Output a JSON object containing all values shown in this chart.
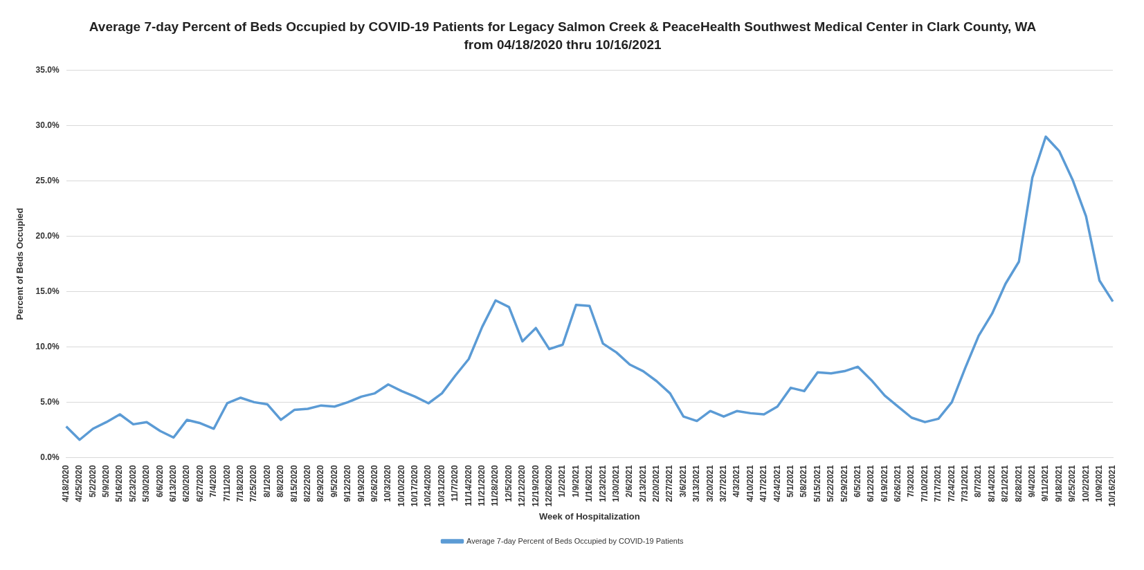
{
  "chart_data": {
    "type": "line",
    "title": "Average 7-day Percent of Beds Occupied by COVID-19 Patients for Legacy Salmon Creek & PeaceHealth Southwest Medical Center in Clark County, WA",
    "subtitle": "from 04/18/2020 thru 10/16/2021",
    "xlabel": "Week of Hospitalization",
    "ylabel": "Percent of Beds Occupied",
    "categories": [
      "4/18/2020",
      "4/25/2020",
      "5/2/2020",
      "5/9/2020",
      "5/16/2020",
      "5/23/2020",
      "5/30/2020",
      "6/6/2020",
      "6/13/2020",
      "6/20/2020",
      "6/27/2020",
      "7/4/2020",
      "7/11/2020",
      "7/18/2020",
      "7/25/2020",
      "8/1/2020",
      "8/8/2020",
      "8/15/2020",
      "8/22/2020",
      "8/29/2020",
      "9/5/2020",
      "9/12/2020",
      "9/19/2020",
      "9/26/2020",
      "10/3/2020",
      "10/10/2020",
      "10/17/2020",
      "10/24/2020",
      "10/31/2020",
      "11/7/2020",
      "11/14/2020",
      "11/21/2020",
      "11/28/2020",
      "12/5/2020",
      "12/12/2020",
      "12/19/2020",
      "12/26/2020",
      "1/2/2021",
      "1/9/2021",
      "1/16/2021",
      "1/23/2021",
      "1/30/2021",
      "2/6/2021",
      "2/13/2021",
      "2/20/2021",
      "2/27/2021",
      "3/6/2021",
      "3/13/2021",
      "3/20/2021",
      "3/27/2021",
      "4/3/2021",
      "4/10/2021",
      "4/17/2021",
      "4/24/2021",
      "5/1/2021",
      "5/8/2021",
      "5/15/2021",
      "5/22/2021",
      "5/29/2021",
      "6/5/2021",
      "6/12/2021",
      "6/19/2021",
      "6/26/2021",
      "7/3/2021",
      "7/10/2021",
      "7/17/2021",
      "7/24/2021",
      "7/31/2021",
      "8/7/2021",
      "8/14/2021",
      "8/21/2021",
      "8/28/2021",
      "9/4/2021",
      "9/11/2021",
      "9/18/2021",
      "9/25/2021",
      "10/2/2021",
      "10/9/2021",
      "10/16/2021"
    ],
    "series": [
      {
        "name": "Average 7-day Percent of Beds Occupied by COVID-19 Patients",
        "color": "#5b9bd5",
        "values": [
          2.8,
          1.6,
          2.6,
          3.2,
          3.9,
          3.0,
          3.2,
          2.4,
          1.8,
          3.4,
          3.1,
          2.6,
          4.9,
          5.4,
          5.0,
          4.8,
          3.4,
          4.3,
          4.4,
          4.7,
          4.6,
          5.0,
          5.5,
          5.8,
          6.6,
          6.0,
          5.5,
          4.9,
          5.8,
          7.4,
          8.9,
          11.8,
          14.2,
          13.6,
          10.5,
          11.7,
          9.8,
          10.2,
          13.8,
          13.7,
          10.3,
          9.5,
          8.4,
          7.8,
          6.9,
          5.8,
          3.7,
          3.3,
          4.2,
          3.7,
          4.2,
          4.0,
          3.9,
          4.6,
          6.3,
          6.0,
          7.7,
          7.6,
          7.8,
          8.2,
          7.0,
          5.6,
          4.6,
          3.6,
          3.2,
          3.5,
          5.0,
          8.1,
          11.0,
          13.0,
          15.7,
          17.7,
          25.3,
          29.0,
          27.7,
          25.1,
          21.8,
          16.0,
          14.1
        ]
      }
    ],
    "ylim": [
      0,
      35
    ],
    "yticks": [
      {
        "value": 0,
        "label": "0.0%"
      },
      {
        "value": 5,
        "label": "5.0%"
      },
      {
        "value": 10,
        "label": "10.0%"
      },
      {
        "value": 15,
        "label": "15.0%"
      },
      {
        "value": 20,
        "label": "20.0%"
      },
      {
        "value": 25,
        "label": "25.0%"
      },
      {
        "value": 30,
        "label": "30.0%"
      },
      {
        "value": 35,
        "label": "35.0%"
      }
    ],
    "grid": "y",
    "legend": "bottom",
    "marker": "none",
    "line_style": "solid"
  }
}
